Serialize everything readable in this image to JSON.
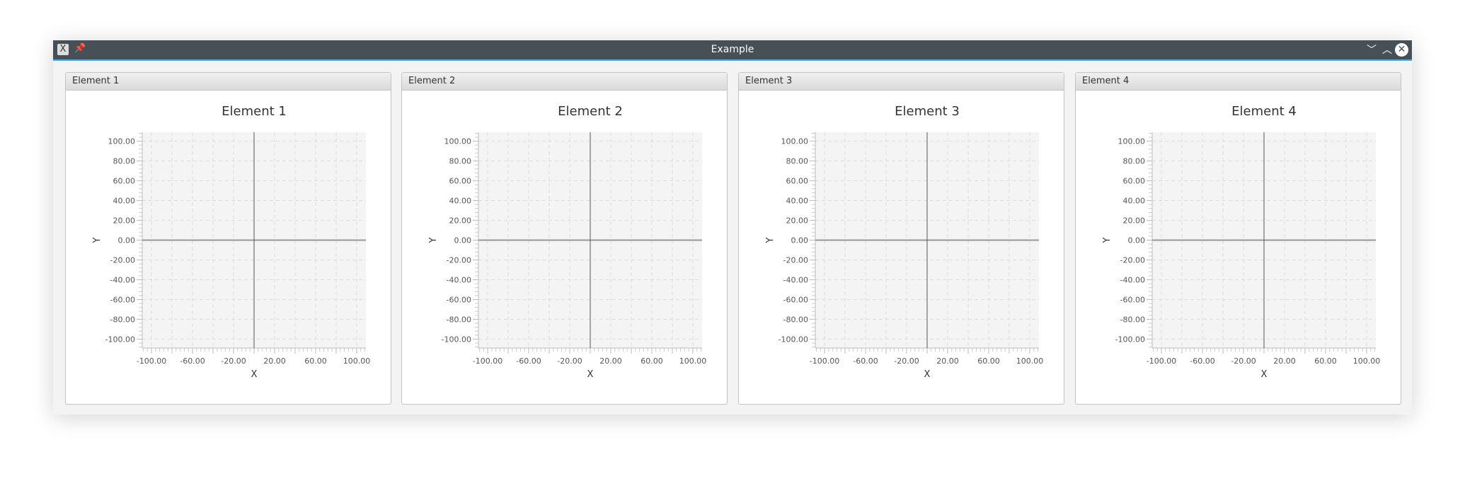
{
  "window": {
    "title": "Example",
    "app_icon": "x-app-icon",
    "pin_icon": "pin-icon",
    "minimize_icon": "chevron-down-icon",
    "maximize_icon": "chevron-up-icon",
    "close_icon": "close-icon"
  },
  "panels": [
    {
      "label": "Element 1"
    },
    {
      "label": "Element 2"
    },
    {
      "label": "Element 3"
    },
    {
      "label": "Element 4"
    }
  ],
  "chart_data": [
    {
      "type": "line",
      "title": "Element 1",
      "xlabel": "X",
      "ylabel": "Y",
      "xlim": [
        -109,
        109
      ],
      "ylim": [
        -109,
        109
      ],
      "x_ticks": [
        -100,
        -60,
        -20,
        20,
        60,
        100
      ],
      "y_ticks": [
        -100,
        -80,
        -60,
        -40,
        -20,
        0,
        20,
        40,
        60,
        80,
        100
      ],
      "grid": true,
      "series": []
    },
    {
      "type": "line",
      "title": "Element 2",
      "xlabel": "X",
      "ylabel": "Y",
      "xlim": [
        -109,
        109
      ],
      "ylim": [
        -109,
        109
      ],
      "x_ticks": [
        -100,
        -60,
        -20,
        20,
        60,
        100
      ],
      "y_ticks": [
        -100,
        -80,
        -60,
        -40,
        -20,
        0,
        20,
        40,
        60,
        80,
        100
      ],
      "grid": true,
      "series": []
    },
    {
      "type": "line",
      "title": "Element 3",
      "xlabel": "X",
      "ylabel": "Y",
      "xlim": [
        -109,
        109
      ],
      "ylim": [
        -109,
        109
      ],
      "x_ticks": [
        -100,
        -60,
        -20,
        20,
        60,
        100
      ],
      "y_ticks": [
        -100,
        -80,
        -60,
        -40,
        -20,
        0,
        20,
        40,
        60,
        80,
        100
      ],
      "grid": true,
      "series": []
    },
    {
      "type": "line",
      "title": "Element 4",
      "xlabel": "X",
      "ylabel": "Y",
      "xlim": [
        -109,
        109
      ],
      "ylim": [
        -109,
        109
      ],
      "x_ticks": [
        -100,
        -60,
        -20,
        20,
        60,
        100
      ],
      "y_ticks": [
        -100,
        -80,
        -60,
        -40,
        -20,
        0,
        20,
        40,
        60,
        80,
        100
      ],
      "grid": true,
      "series": []
    }
  ]
}
